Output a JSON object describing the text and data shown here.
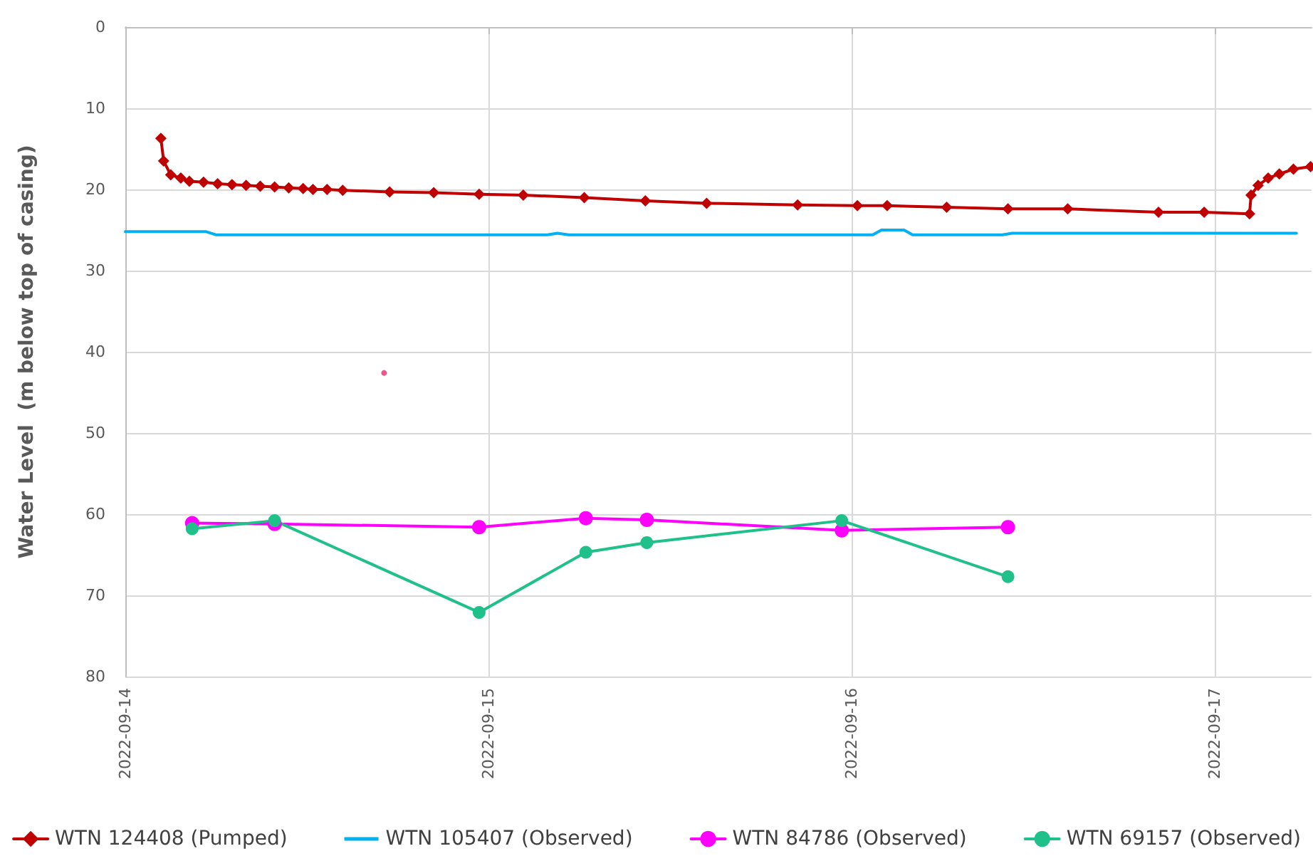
{
  "chart_data": {
    "type": "line",
    "ylabel": "Water Level  (m below top of casing)",
    "xlim": [
      "2022-09-14",
      "2022-09-17T06:24"
    ],
    "xticks": [
      "2022-09-14",
      "2022-09-15",
      "2022-09-16",
      "2022-09-17"
    ],
    "ylim": [
      80,
      0
    ],
    "yticks": [
      0,
      10,
      20,
      30,
      40,
      50,
      60,
      70,
      80
    ],
    "grid": true,
    "legend": "bottom",
    "series": [
      {
        "name": "WTN 124408 (Pumped)",
        "color": "#c00000",
        "marker": "diamond",
        "x": [
          "2022-09-14T02:21",
          "2022-09-14T02:32",
          "2022-09-14T03:00",
          "2022-09-14T03:40",
          "2022-09-14T04:14",
          "2022-09-14T05:10",
          "2022-09-14T06:06",
          "2022-09-14T07:03",
          "2022-09-14T07:59",
          "2022-09-14T08:55",
          "2022-09-14T09:52",
          "2022-09-14T10:48",
          "2022-09-14T11:45",
          "2022-09-14T12:24",
          "2022-09-14T13:20",
          "2022-09-14T14:22",
          "2022-09-14T17:28",
          "2022-09-14T20:23",
          "2022-09-14T23:23",
          "2022-09-15T02:18",
          "2022-09-15T06:20",
          "2022-09-15T10:22",
          "2022-09-15T14:25",
          "2022-09-15T20:26",
          "2022-09-16T00:23",
          "2022-09-16T02:21",
          "2022-09-16T06:17",
          "2022-09-16T10:20",
          "2022-09-16T14:17",
          "2022-09-16T20:17",
          "2022-09-16T23:18",
          "2022-09-17T02:18",
          "2022-09-17T02:24",
          "2022-09-17T02:52",
          "2022-09-17T03:32",
          "2022-09-17T04:16",
          "2022-09-17T05:12",
          "2022-09-17T06:20"
        ],
        "values": [
          13.7,
          16.5,
          18.2,
          18.6,
          19.0,
          19.1,
          19.3,
          19.4,
          19.5,
          19.6,
          19.7,
          19.8,
          19.9,
          20.0,
          20.0,
          20.1,
          20.3,
          20.4,
          20.6,
          20.7,
          21.0,
          21.4,
          21.7,
          21.9,
          22.0,
          22.0,
          22.2,
          22.4,
          22.4,
          22.8,
          22.8,
          23.0,
          20.7,
          19.5,
          18.6,
          18.1,
          17.5,
          17.2
        ]
      },
      {
        "type": "scatter",
        "color": "#e0306a",
        "marker": "circle",
        "x": [
          "2022-09-14T17:06"
        ],
        "values": [
          42.6
        ]
      },
      {
        "name": "WTN 105407 (Observed)",
        "color": "#00b0f0",
        "marker": "none",
        "x": [
          "2022-09-14",
          "2022-09-14T05:21",
          "2022-09-14T06:01",
          "2022-09-15T03:54",
          "2022-09-15T04:33",
          "2022-09-15T05:18",
          "2022-09-16T01:24",
          "2022-09-16T01:58",
          "2022-09-16T03:28",
          "2022-09-16T04:02",
          "2022-09-16T09:58",
          "2022-09-16T10:37",
          "2022-09-17T05:24"
        ],
        "values": [
          25.2,
          25.2,
          25.6,
          25.6,
          25.4,
          25.6,
          25.6,
          25.0,
          25.0,
          25.6,
          25.6,
          25.4,
          25.4
        ]
      },
      {
        "name": "WTN 84786 (Observed)",
        "color": "#ff00ff",
        "marker": "circle",
        "x": [
          "2022-09-14T04:25",
          "2022-09-14T09:52",
          "2022-09-14T23:23",
          "2022-09-15T06:26",
          "2022-09-15T10:28",
          "2022-09-15T23:21",
          "2022-09-16T10:20"
        ],
        "values": [
          61.1,
          61.2,
          61.6,
          60.5,
          60.7,
          62.0,
          61.6
        ]
      },
      {
        "name": "WTN 69157 (Observed)",
        "color": "#1fc08a",
        "marker": "circle",
        "x": [
          "2022-09-14T04:25",
          "2022-09-14T09:52",
          "2022-09-14T23:23",
          "2022-09-15T06:26",
          "2022-09-15T10:28",
          "2022-09-15T23:21",
          "2022-09-16T10:20"
        ],
        "values": [
          61.8,
          60.8,
          72.1,
          64.7,
          63.5,
          60.8,
          67.7
        ]
      }
    ]
  }
}
